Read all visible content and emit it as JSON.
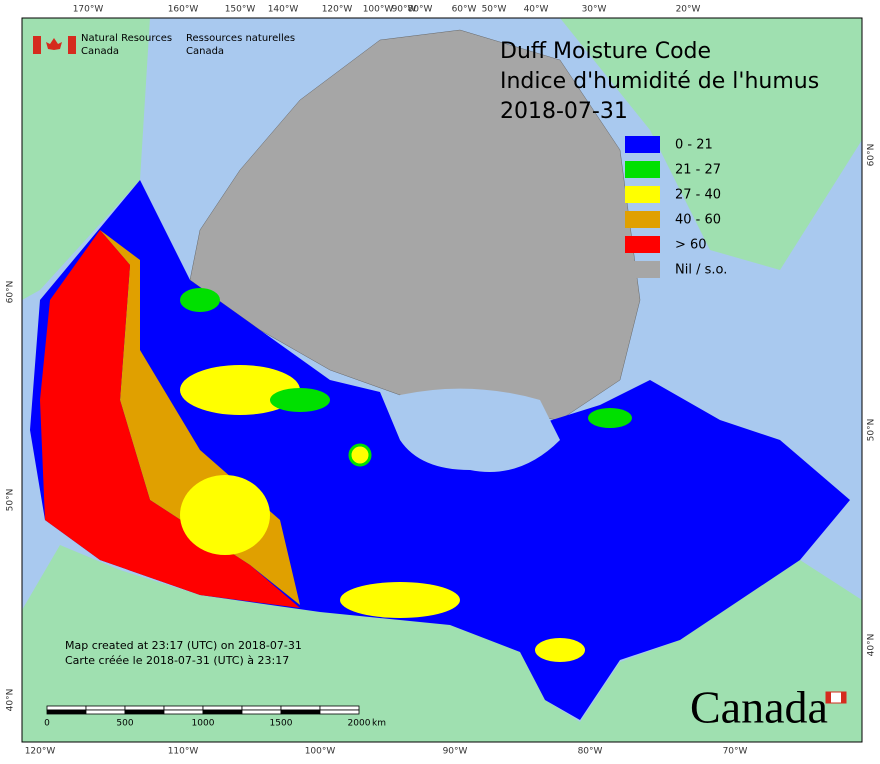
{
  "agency": {
    "en_line1": "Natural Resources",
    "en_line2": "Canada",
    "fr_line1": "Ressources naturelles",
    "fr_line2": "Canada"
  },
  "title": [
    "Duff Moisture Code",
    "Indice d'humidité de l'humus",
    "2018-07-31"
  ],
  "legend": [
    {
      "label": "0 - 21",
      "color": "#0000ff"
    },
    {
      "label": "21 - 27",
      "color": "#00e000"
    },
    {
      "label": "27 - 40",
      "color": "#ffff00"
    },
    {
      "label": "40 - 60",
      "color": "#e0a000"
    },
    {
      "label": "> 60",
      "color": "#ff0000"
    },
    {
      "label": "Nil / s.o.",
      "color": "#a6a6a6"
    }
  ],
  "graticule": {
    "top": [
      "170°W",
      "160°W",
      "150°W",
      "140°W",
      "120°W",
      "100°W",
      "90°W",
      "80°W",
      "60°W",
      "50°W",
      "40°W",
      "30°W",
      "20°W"
    ],
    "bottom": [
      "120°W",
      "110°W",
      "100°W",
      "90°W",
      "80°W",
      "70°W"
    ],
    "left": [
      "60°N",
      "50°N",
      "40°N"
    ],
    "right": [
      "60°N",
      "50°N",
      "40°N"
    ]
  },
  "notes": [
    "Map created at 23:17 (UTC) on 2018-07-31",
    "Carte créée le 2018-07-31 (UTC) à 23:17"
  ],
  "scale_bar": {
    "labels": [
      0,
      500,
      1000,
      1500,
      2000
    ],
    "unit": "km"
  },
  "wordmark": "Canada"
}
